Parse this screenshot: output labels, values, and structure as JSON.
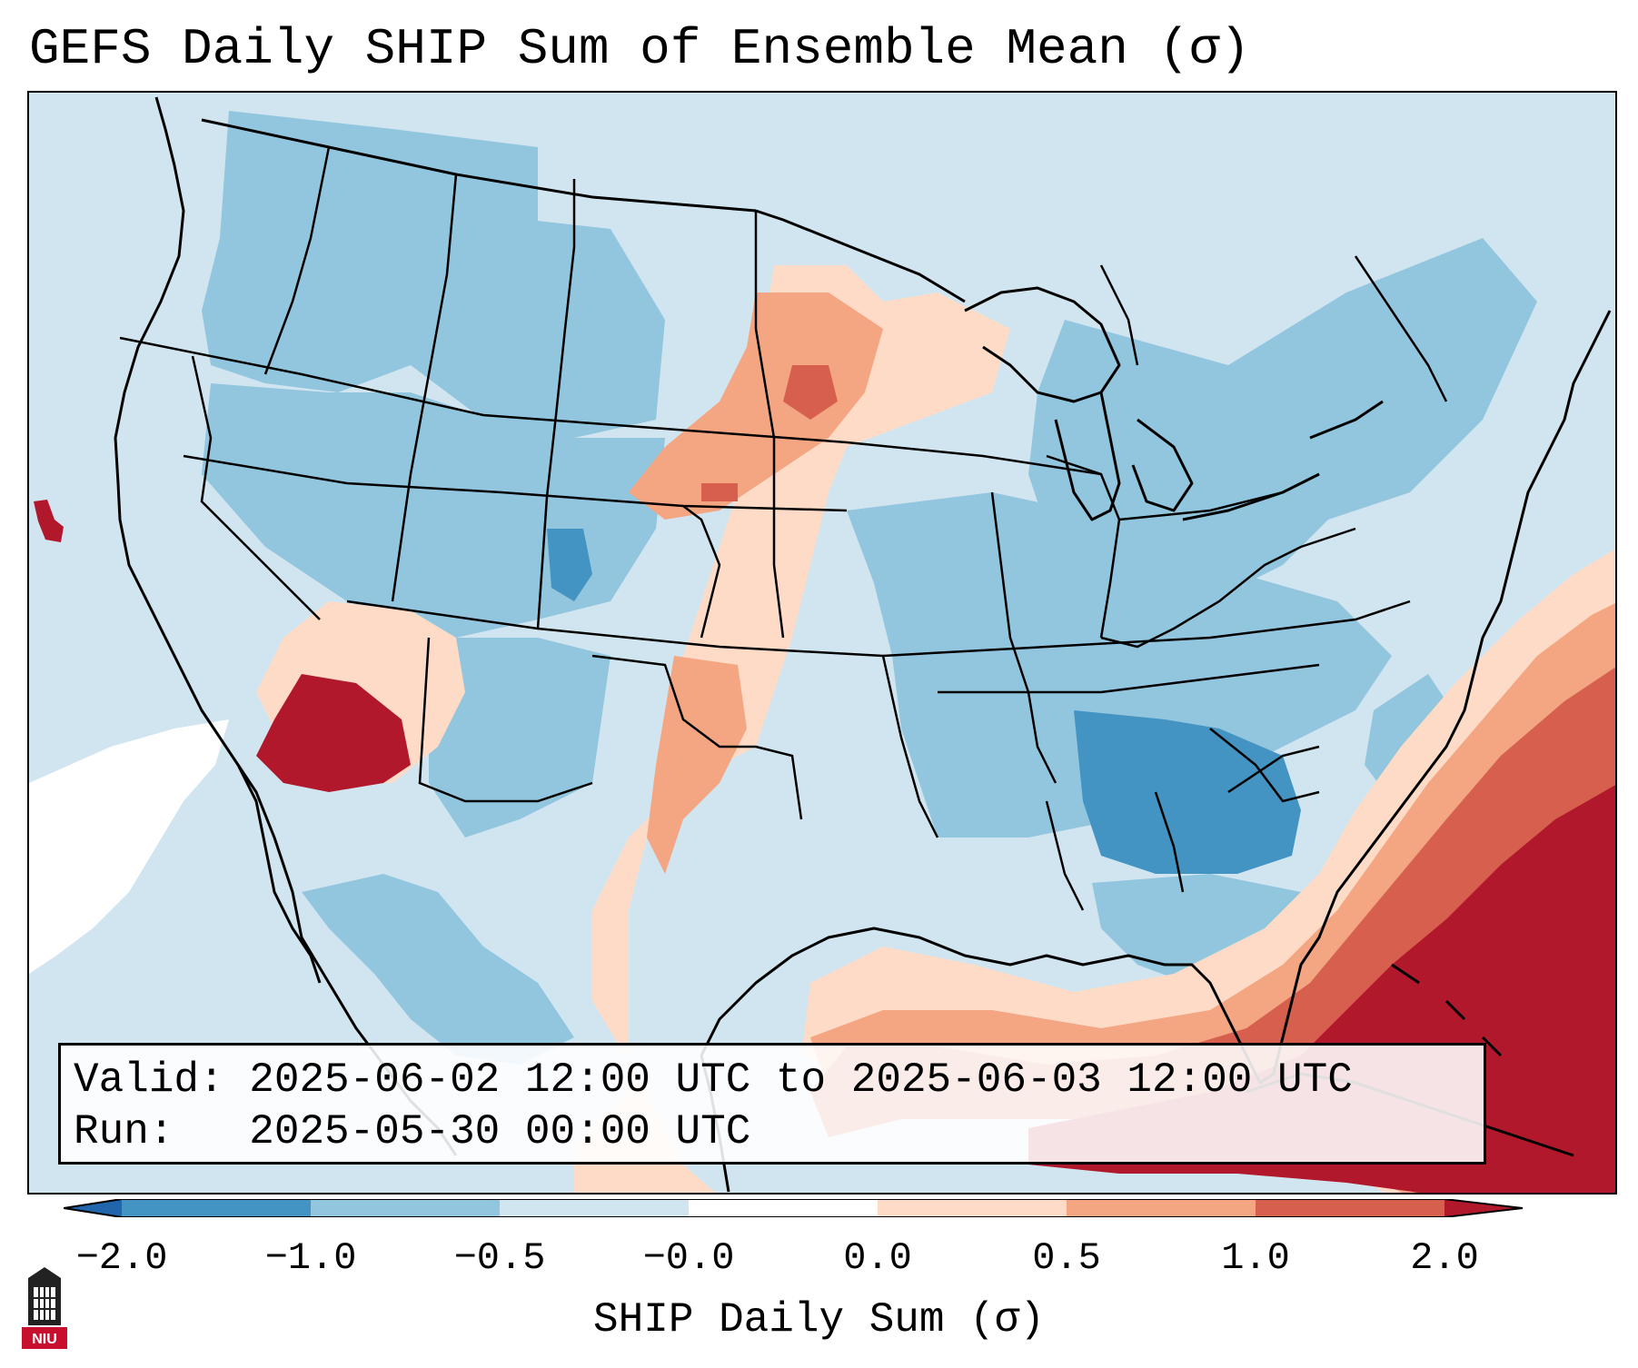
{
  "title": "GEFS Daily SHIP Sum of Ensemble Mean (σ)",
  "info": {
    "valid": "Valid: 2025-06-02 12:00 UTC to 2025-06-03 12:00 UTC",
    "run": "Run:   2025-05-30 00:00 UTC"
  },
  "colorbar": {
    "label": "SHIP Daily Sum (σ)",
    "tick_labels": [
      "−2.0",
      "−1.0",
      "−0.5",
      "−0.0",
      "0.0",
      "0.5",
      "1.0",
      "2.0"
    ],
    "bin_colors": [
      "#2166ac",
      "#4393c3",
      "#92c5de",
      "#d1e5f0",
      "#ffffff",
      "#fddbc7",
      "#f4a582",
      "#d6604d",
      "#b2182b"
    ]
  },
  "map": {
    "region": "Contiguous United States",
    "field_colors": {
      "neg_strong": "#4393c3",
      "neg_moderate": "#92c5de",
      "neg_weak": "#d1e5f0",
      "neutral": "#ffffff",
      "pos_weak": "#fddbc7",
      "pos_moderate": "#f4a582",
      "pos_strong": "#d6604d",
      "pos_extreme": "#b2182b"
    },
    "border_color": "#000000"
  },
  "logo": {
    "text": "NIU",
    "color": "#c8102e"
  }
}
